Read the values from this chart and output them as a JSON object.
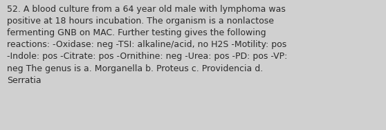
{
  "lines": [
    "52. A blood culture from a 64 year old male with lymphoma was",
    "positive at 18 hours incubation. The organism is a nonlactose",
    "fermenting GNB on MAC. Further testing gives the following",
    "reactions: -Oxidase: neg -TSI: alkaline/acid, no H2S -Motility: pos",
    "-Indole: pos -Citrate: pos -Ornithine: neg -Urea: pos -PD: pos -VP:",
    "neg The genus is a. Morganella b. Proteus c. Providencia d.",
    "Serratia"
  ],
  "background_color": "#d0d0d0",
  "text_color": "#2b2b2b",
  "font_size": 9.0,
  "fig_width": 5.58,
  "fig_height": 1.88,
  "dpi": 100
}
